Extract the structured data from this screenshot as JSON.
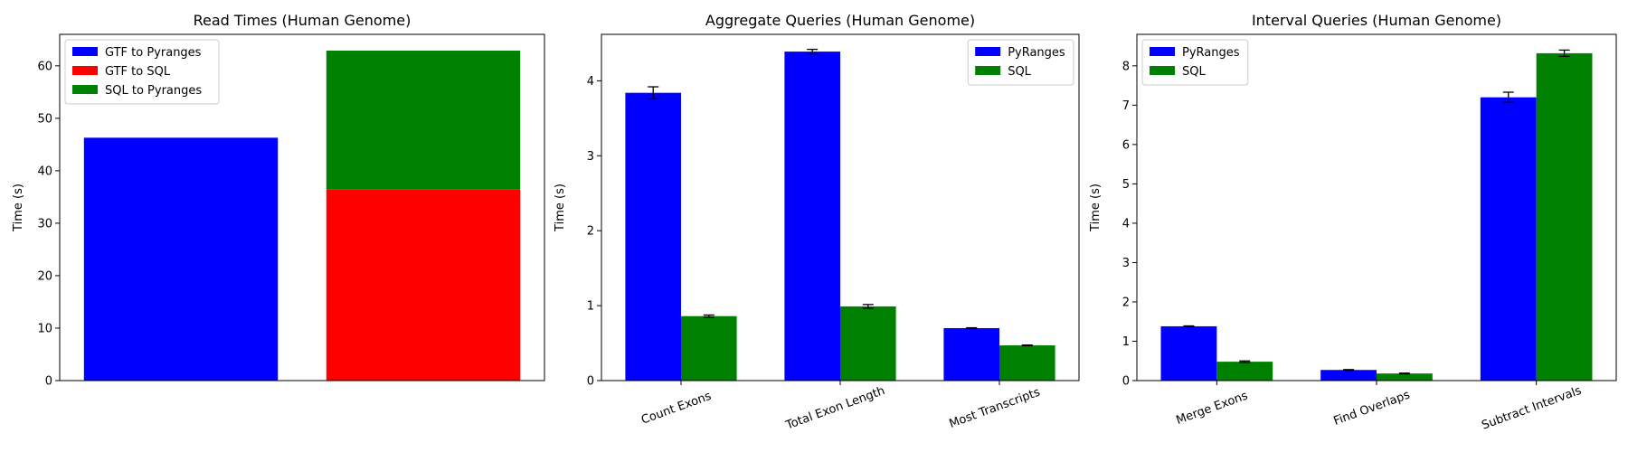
{
  "chart_data": [
    {
      "type": "bar",
      "stacked": true,
      "title": "Read Times (Human Genome)",
      "xlabel": "",
      "ylabel": "Time (s)",
      "ylim": [
        0,
        66
      ],
      "yticks": [
        0,
        10,
        20,
        30,
        40,
        50,
        60
      ],
      "categories": [
        "",
        ""
      ],
      "legend_position": "top-left",
      "grid": false,
      "series": [
        {
          "name": "GTF to Pyranges",
          "color": "#0000ff",
          "values": [
            46.3,
            0
          ],
          "errors": null
        },
        {
          "name": "GTF to SQL",
          "color": "#ff0000",
          "values": [
            0,
            36.5
          ],
          "errors": null
        },
        {
          "name": "SQL to Pyranges",
          "color": "#008000",
          "values": [
            0,
            26.4
          ],
          "errors": null
        }
      ]
    },
    {
      "type": "bar",
      "stacked": false,
      "title": "Aggregate Queries (Human Genome)",
      "xlabel": "",
      "ylabel": "Time (s)",
      "ylim": [
        0,
        4.62
      ],
      "yticks": [
        0,
        1,
        2,
        3,
        4
      ],
      "categories": [
        "Count Exons",
        "Total Exon Length",
        "Most Transcripts"
      ],
      "legend_position": "top-right",
      "grid": false,
      "series": [
        {
          "name": "PyRanges",
          "color": "#0000ff",
          "values": [
            3.84,
            4.39,
            0.7
          ],
          "errors": [
            0.08,
            0.03,
            0.005
          ]
        },
        {
          "name": "SQL",
          "color": "#008000",
          "values": [
            0.86,
            0.99,
            0.47
          ],
          "errors": [
            0.015,
            0.025,
            0.005
          ]
        }
      ]
    },
    {
      "type": "bar",
      "stacked": false,
      "title": "Interval Queries (Human Genome)",
      "xlabel": "",
      "ylabel": "Time (s)",
      "ylim": [
        0,
        8.8
      ],
      "yticks": [
        0,
        1,
        2,
        3,
        4,
        5,
        6,
        7,
        8
      ],
      "categories": [
        "Merge Exons",
        "Find Overlaps",
        "Subtract Intervals"
      ],
      "legend_position": "top-left",
      "grid": false,
      "series": [
        {
          "name": "PyRanges",
          "color": "#0000ff",
          "values": [
            1.38,
            0.27,
            7.2
          ],
          "errors": [
            0.01,
            0.01,
            0.13
          ]
        },
        {
          "name": "SQL",
          "color": "#008000",
          "values": [
            0.48,
            0.18,
            8.32
          ],
          "errors": [
            0.02,
            0.01,
            0.08
          ]
        }
      ]
    }
  ]
}
